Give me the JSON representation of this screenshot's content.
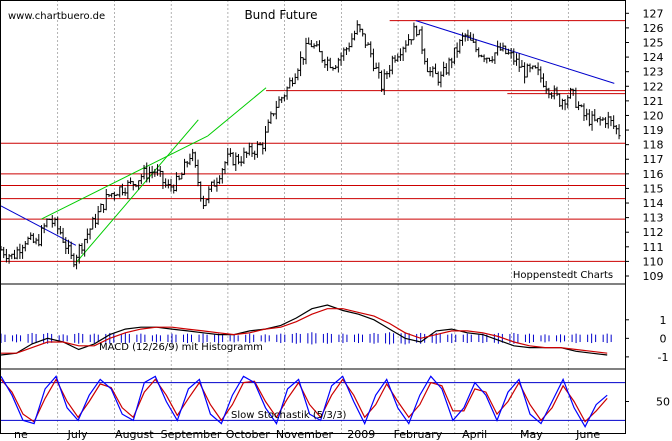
{
  "colors": {
    "price": "#000000",
    "hline": "#cc0000",
    "channel": "#00cc00",
    "trend": "#0000cc",
    "macd_line": "#000000",
    "macd_signal": "#cc0000",
    "histogram": "#0000cc",
    "stoch_k": "#0000ff",
    "stoch_d": "#cc0000",
    "stoch_band": "#0000cc",
    "grid": "#808080"
  },
  "chart_data": [
    {
      "type": "ohlc",
      "title": "Bund Future",
      "watermark": "www.chartbuero.de",
      "credit": "Hoppenstedt Charts",
      "x_axis_label": "",
      "month_labels": [
        "ne",
        "July",
        "August",
        "September",
        "October",
        "November",
        "2009",
        "February",
        "April",
        "May",
        "June"
      ],
      "yticks": [
        109,
        110,
        111,
        112,
        113,
        114,
        115,
        116,
        117,
        118,
        119,
        120,
        121,
        122,
        123,
        124,
        125,
        126,
        127
      ],
      "ylim": [
        109,
        127.5
      ],
      "grid": "vertical dashed month lines",
      "horizontal_lines": [
        126.5,
        121.7,
        121.5,
        118.1,
        116.0,
        115.2,
        114.3,
        112.9,
        110.0
      ],
      "channel_lines": [
        {
          "from": [
            6.3,
            109.9
          ],
          "to": [
            16.6,
            119.7
          ]
        },
        {
          "from": [
            3.4,
            112.9
          ],
          "to": [
            17.4,
            118.6
          ]
        },
        {
          "from": [
            17.4,
            118.6
          ],
          "to": [
            22.3,
            121.9
          ]
        }
      ],
      "trend_lines": [
        {
          "from": [
            0,
            113.8
          ],
          "to": [
            6.3,
            111.1
          ]
        },
        {
          "from": [
            34.9,
            126.5
          ],
          "to": [
            51.6,
            122.2
          ]
        }
      ],
      "x_range": [
        0,
        52.5
      ],
      "close_anchors": [
        [
          0,
          110.8
        ],
        [
          1,
          110.3
        ],
        [
          2,
          111.5
        ],
        [
          3,
          111.2
        ],
        [
          4,
          113.0
        ],
        [
          5,
          112.0
        ],
        [
          6,
          110.0
        ],
        [
          7,
          111.5
        ],
        [
          8,
          113.0
        ],
        [
          9,
          114.5
        ],
        [
          10,
          115.0
        ],
        [
          11,
          115.3
        ],
        [
          12,
          116.0
        ],
        [
          13,
          116.2
        ],
        [
          14,
          115.0
        ],
        [
          15,
          115.5
        ],
        [
          16,
          117.5
        ],
        [
          17,
          114.0
        ],
        [
          18,
          115.5
        ],
        [
          19,
          117.0
        ],
        [
          20,
          117.0
        ],
        [
          21,
          117.5
        ],
        [
          22,
          118.0
        ],
        [
          23,
          120.5
        ],
        [
          24,
          121.7
        ],
        [
          25,
          123.5
        ],
        [
          26,
          125.0
        ],
        [
          27,
          124.0
        ],
        [
          28,
          123.5
        ],
        [
          29,
          124.5
        ],
        [
          30,
          126.0
        ],
        [
          31,
          124.5
        ],
        [
          32,
          122.0
        ],
        [
          33,
          124.0
        ],
        [
          34,
          125.0
        ],
        [
          35,
          126.0
        ],
        [
          36,
          123.0
        ],
        [
          37,
          122.5
        ],
        [
          38,
          124.0
        ],
        [
          39,
          125.5
        ],
        [
          40,
          124.5
        ],
        [
          41,
          124.0
        ],
        [
          42,
          124.5
        ],
        [
          43,
          124.0
        ],
        [
          44,
          123.0
        ],
        [
          45,
          123.0
        ],
        [
          46,
          122.0
        ],
        [
          47,
          121.0
        ],
        [
          48,
          121.5
        ],
        [
          49,
          120.0
        ],
        [
          50,
          119.5
        ],
        [
          51,
          119.8
        ],
        [
          52,
          118.8
        ]
      ]
    },
    {
      "type": "line",
      "title": "MACD (12/26/9) mit Histogramm",
      "yticks": [
        -1,
        0,
        1
      ],
      "ylim": [
        -1.6,
        2.5
      ],
      "series": [
        {
          "values": [
            -0.9,
            -0.8,
            -0.3,
            0.0,
            -0.2,
            -0.6,
            -0.3,
            0.2,
            0.5,
            0.6,
            0.6,
            0.5,
            0.4,
            0.3,
            0.2,
            0.2,
            0.4,
            0.5,
            0.7,
            1.1,
            1.6,
            1.8,
            1.5,
            1.3,
            1.0,
            0.5,
            0.0,
            -0.2,
            0.4,
            0.5,
            0.3,
            0.2,
            -0.1,
            -0.4,
            -0.5,
            -0.5,
            -0.5,
            -0.7,
            -0.8,
            -0.9
          ]
        },
        {
          "values": [
            -0.8,
            -0.8,
            -0.5,
            -0.2,
            -0.2,
            -0.4,
            -0.4,
            0.0,
            0.3,
            0.5,
            0.6,
            0.6,
            0.5,
            0.4,
            0.3,
            0.2,
            0.3,
            0.5,
            0.6,
            0.9,
            1.3,
            1.6,
            1.6,
            1.4,
            1.2,
            0.8,
            0.3,
            0.0,
            0.2,
            0.4,
            0.4,
            0.3,
            0.1,
            -0.2,
            -0.4,
            -0.5,
            -0.5,
            -0.6,
            -0.7,
            -0.8
          ]
        }
      ]
    },
    {
      "type": "line",
      "title": "Slow Stochastik (5/3/3)",
      "yticks": [
        50
      ],
      "ylim": [
        0,
        100
      ],
      "bands": [
        80,
        20
      ],
      "series": [
        {
          "values": [
            90,
            60,
            20,
            15,
            70,
            90,
            40,
            20,
            60,
            85,
            70,
            30,
            20,
            80,
            90,
            50,
            20,
            70,
            85,
            30,
            15,
            60,
            90,
            80,
            40,
            15,
            70,
            85,
            30,
            20,
            75,
            90,
            50,
            15,
            60,
            85,
            40,
            15,
            60,
            90,
            70,
            20,
            40,
            80,
            60,
            20,
            65,
            85,
            30,
            15,
            50,
            85,
            40,
            10,
            45,
            60
          ]
        },
        {
          "values": [
            85,
            65,
            30,
            18,
            55,
            85,
            50,
            25,
            50,
            78,
            72,
            40,
            25,
            65,
            85,
            60,
            28,
            55,
            80,
            45,
            20,
            45,
            80,
            82,
            50,
            25,
            55,
            80,
            45,
            25,
            60,
            85,
            60,
            25,
            45,
            78,
            50,
            25,
            45,
            80,
            75,
            35,
            35,
            70,
            65,
            30,
            50,
            80,
            45,
            20,
            40,
            75,
            50,
            18,
            35,
            55
          ]
        }
      ]
    }
  ]
}
